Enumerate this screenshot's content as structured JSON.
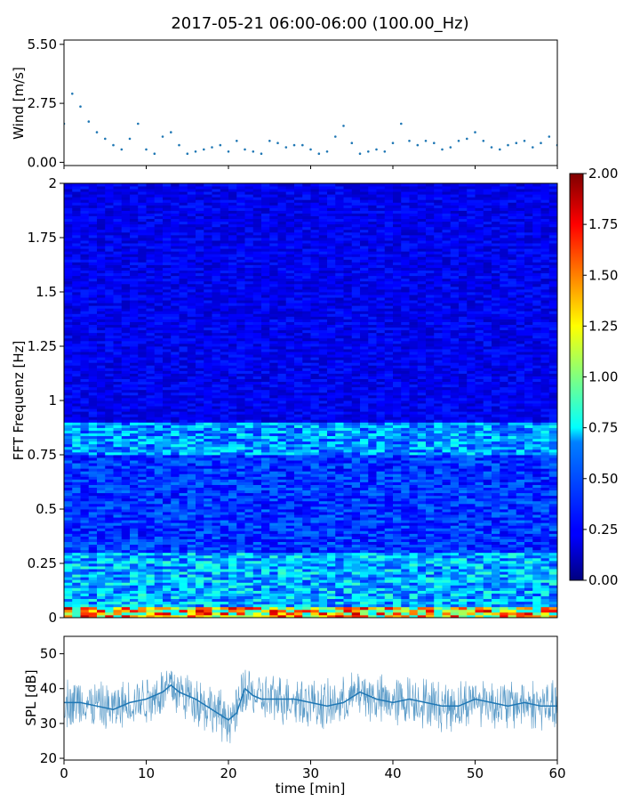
{
  "title": "2017-05-21 06:00-06:00 (100.00_Hz)",
  "colors": {
    "wind": "#1f77b4",
    "spl": "#1f77b4"
  },
  "colormap": "jet",
  "chart_data": [
    {
      "type": "scatter",
      "ylabel": "Wind [m/s]",
      "xlim": [
        0,
        60
      ],
      "ylim": [
        -0.15,
        5.7
      ],
      "y_ticks": [
        0.0,
        2.75,
        5.5
      ],
      "y_tick_labels": [
        "0.00",
        "2.75",
        "5.50"
      ],
      "x_ticks": [
        0,
        10,
        20,
        30,
        40,
        50,
        60
      ],
      "series": [
        {
          "x": [
            0,
            1,
            2,
            3,
            4,
            5,
            6,
            7,
            8,
            9,
            10,
            11,
            12,
            13,
            14,
            15,
            16,
            17,
            18,
            19,
            20,
            21,
            22,
            23,
            24,
            25,
            26,
            27,
            28,
            29,
            30,
            31,
            32,
            33,
            34,
            35,
            36,
            37,
            38,
            39,
            40,
            41,
            42,
            43,
            44,
            45,
            46,
            47,
            48,
            49,
            50,
            51,
            52,
            53,
            54,
            55,
            56,
            57,
            58,
            59,
            60
          ],
          "y": [
            1.8,
            3.2,
            2.6,
            1.9,
            1.4,
            1.1,
            0.8,
            0.6,
            1.1,
            1.8,
            0.6,
            0.4,
            1.2,
            1.4,
            0.8,
            0.4,
            0.5,
            0.6,
            0.7,
            0.8,
            0.5,
            1.0,
            0.6,
            0.5,
            0.4,
            1.0,
            0.9,
            0.7,
            0.8,
            0.8,
            0.6,
            0.4,
            0.5,
            1.2,
            1.7,
            0.9,
            0.4,
            0.5,
            0.6,
            0.5,
            0.9,
            1.8,
            1.0,
            0.8,
            1.0,
            0.9,
            0.6,
            0.7,
            1.0,
            1.1,
            1.4,
            1.0,
            0.7,
            0.6,
            0.8,
            0.9,
            1.0,
            0.7,
            0.9,
            1.2,
            0.8
          ]
        }
      ]
    },
    {
      "type": "heatmap",
      "ylabel": "FFT Frequenz [Hz]",
      "xlim": [
        0,
        60
      ],
      "ylim": [
        0,
        2
      ],
      "y_ticks": [
        0,
        0.25,
        0.5,
        0.75,
        1,
        1.25,
        1.5,
        1.75,
        2
      ],
      "y_tick_labels": [
        "0",
        "0.25",
        "0.5",
        "0.75",
        "1",
        "1.25",
        "1.5",
        "1.75",
        "2"
      ],
      "colorbar": {
        "range": [
          0,
          2
        ],
        "ticks": [
          0.0,
          0.25,
          0.5,
          0.75,
          1.0,
          1.25,
          1.5,
          1.75,
          2.0
        ],
        "tick_labels": [
          "0.00",
          "0.25",
          "0.50",
          "0.75",
          "1.00",
          "1.25",
          "1.50",
          "1.75",
          "2.00"
        ]
      },
      "bands": [
        {
          "freq": [
            0.0,
            0.05
          ],
          "level": 1.3
        },
        {
          "freq": [
            0.05,
            0.3
          ],
          "level": 0.6
        },
        {
          "freq": [
            0.3,
            0.75
          ],
          "level": 0.35
        },
        {
          "freq": [
            0.75,
            0.9
          ],
          "level": 0.55
        },
        {
          "freq": [
            0.9,
            2.0
          ],
          "level": 0.22
        }
      ]
    },
    {
      "type": "line",
      "ylabel": "SPL [dB]",
      "xlabel": "time [min]",
      "xlim": [
        0,
        60
      ],
      "ylim": [
        19.5,
        55
      ],
      "y_ticks": [
        20,
        30,
        40,
        50
      ],
      "y_tick_labels": [
        "20",
        "30",
        "40",
        "50"
      ],
      "x_ticks": [
        0,
        10,
        20,
        30,
        40,
        50,
        60
      ],
      "x_tick_labels": [
        "0",
        "10",
        "20",
        "30",
        "40",
        "50",
        "60"
      ],
      "series": [
        {
          "x": [
            0,
            2,
            4,
            6,
            8,
            10,
            12,
            13,
            14,
            16,
            18,
            20,
            21,
            22,
            23,
            24,
            26,
            28,
            30,
            32,
            34,
            36,
            38,
            40,
            42,
            44,
            46,
            48,
            50,
            52,
            54,
            56,
            58,
            60
          ],
          "y": [
            36,
            36,
            35,
            34,
            36,
            37,
            39,
            41,
            39,
            37,
            34,
            31,
            33,
            40,
            38,
            37,
            37,
            37,
            36,
            35,
            36,
            39,
            37,
            36,
            37,
            36,
            35,
            35,
            37,
            36,
            35,
            36,
            35,
            35
          ]
        }
      ]
    }
  ]
}
